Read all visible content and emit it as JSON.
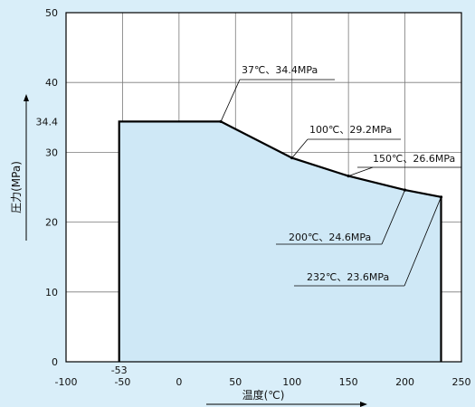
{
  "chart_data": {
    "type": "area",
    "xlabel": "温度(℃)",
    "ylabel": "圧力(MPa)",
    "xlim": [
      -100,
      250
    ],
    "ylim": [
      0,
      50
    ],
    "x_ticks": [
      -100,
      -50,
      0,
      50,
      100,
      150,
      200,
      250
    ],
    "y_ticks": [
      0,
      10,
      20,
      30,
      40,
      50
    ],
    "extra_x_tick_label": "-53",
    "extra_y_tick_label": "34.4",
    "grid": true,
    "fill_color": "#cfe8f6",
    "line_color": "#000000",
    "points": [
      {
        "x": -53,
        "y": 0
      },
      {
        "x": -53,
        "y": 34.4
      },
      {
        "x": 37,
        "y": 34.4
      },
      {
        "x": 100,
        "y": 29.2
      },
      {
        "x": 150,
        "y": 26.6
      },
      {
        "x": 200,
        "y": 24.6
      },
      {
        "x": 232,
        "y": 23.6
      },
      {
        "x": 232,
        "y": 0
      }
    ],
    "annotations": [
      {
        "x": 37,
        "y": 34.4,
        "text": "37℃、34.4MPa"
      },
      {
        "x": 100,
        "y": 29.2,
        "text": "100℃、29.2MPa"
      },
      {
        "x": 150,
        "y": 26.6,
        "text": "150℃、26.6MPa"
      },
      {
        "x": 200,
        "y": 24.6,
        "text": "200℃、24.6MPa"
      },
      {
        "x": 232,
        "y": 23.6,
        "text": "232℃、23.6MPa"
      }
    ]
  }
}
